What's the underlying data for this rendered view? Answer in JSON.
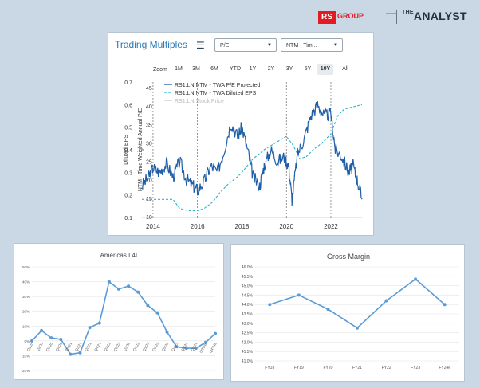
{
  "brand": {
    "rs_logo": "RS",
    "rs_group": "GROUP",
    "analyst_prefix": "THE",
    "analyst_name": "ANALYST"
  },
  "trading": {
    "title": "Trading Multiples",
    "select1": "P/E",
    "select2": "NTM - Tim...",
    "zoom_label": "Zoom",
    "zoom_buttons": [
      "1M",
      "3M",
      "6M",
      "YTD",
      "1Y",
      "2Y",
      "3Y",
      "5Y",
      "10Y",
      "All"
    ],
    "active_zoom": "10Y"
  },
  "chart_data": [
    {
      "type": "line",
      "title": "",
      "ylabel_left": "Diluted EPS",
      "ylabel_right": "NTM - Time Weighted Annual P/E",
      "x_ticks": [
        "2014",
        "2016",
        "2018",
        "2020",
        "2022"
      ],
      "y_left_ticks": [
        "0.1",
        "0.2",
        "0.3",
        "0.4",
        "0.5",
        "0.6",
        "0.7"
      ],
      "y_right_ticks": [
        "10",
        "15",
        "20",
        "25",
        "30",
        "35",
        "40",
        "45"
      ],
      "ylim_left": [
        0.1,
        0.7
      ],
      "xlim": [
        2013.5,
        2023.4
      ],
      "legend": [
        "RS1:LN NTM - TWA P/E Projected",
        "RS1:LN NTM - TWA Diluted EPS",
        "RS1:LN Stock Price"
      ],
      "series": [
        {
          "name": "RS1:LN NTM - TWA P/E Projected",
          "style": "solid",
          "color": "#1f5fa8",
          "x": [
            2013.5,
            2013.8,
            2014.0,
            2014.3,
            2014.6,
            2014.9,
            2015.2,
            2015.5,
            2015.8,
            2016.0,
            2016.3,
            2016.6,
            2016.9,
            2017.2,
            2017.5,
            2017.8,
            2018.0,
            2018.3,
            2018.5,
            2018.8,
            2019.0,
            2019.3,
            2019.6,
            2019.9,
            2020.1,
            2020.25,
            2020.5,
            2020.8,
            2021.1,
            2021.4,
            2021.7,
            2022.0,
            2022.2,
            2022.5,
            2022.8,
            2023.0,
            2023.2,
            2023.4
          ],
          "y": [
            0.24,
            0.28,
            0.32,
            0.3,
            0.34,
            0.28,
            0.35,
            0.27,
            0.24,
            0.22,
            0.26,
            0.33,
            0.3,
            0.4,
            0.52,
            0.46,
            0.5,
            0.38,
            0.28,
            0.24,
            0.33,
            0.4,
            0.35,
            0.37,
            0.33,
            0.18,
            0.38,
            0.45,
            0.55,
            0.6,
            0.55,
            0.56,
            0.4,
            0.37,
            0.3,
            0.33,
            0.26,
            0.18
          ]
        },
        {
          "name": "RS1:LN NTM - TWA Diluted EPS",
          "style": "dashed",
          "color": "#2bb5c7",
          "x": [
            2013.5,
            2014.0,
            2014.5,
            2014.9,
            2015.2,
            2015.6,
            2016.0,
            2016.3,
            2016.7,
            2017.0,
            2017.4,
            2017.8,
            2018.0,
            2018.5,
            2019.0,
            2019.5,
            2020.0,
            2020.3,
            2020.6,
            2020.9,
            2021.2,
            2021.6,
            2022.0,
            2022.3,
            2022.6,
            2023.0,
            2023.4
          ],
          "y": [
            0.18,
            0.18,
            0.18,
            0.18,
            0.14,
            0.13,
            0.13,
            0.14,
            0.17,
            0.21,
            0.25,
            0.28,
            0.3,
            0.36,
            0.4,
            0.43,
            0.46,
            0.42,
            0.36,
            0.37,
            0.4,
            0.43,
            0.47,
            0.55,
            0.58,
            0.59,
            0.6
          ]
        },
        {
          "name": "RS1:LN Stock Price",
          "style": "hidden",
          "color": "#c8cdd2",
          "x": [],
          "y": []
        }
      ]
    },
    {
      "type": "line",
      "title": "Americas L4L",
      "categories": [
        "Q1'20",
        "Q2'20",
        "Q3'20",
        "Q4'20",
        "Q1'21",
        "Q2'21",
        "Q3'21",
        "Q4'21",
        "Q1'22",
        "Q2'22",
        "Q3'22",
        "Q4'22",
        "Q1'23",
        "Q2'23",
        "Q3'23",
        "Q4'23",
        "Q1'24",
        "Q2'24",
        "Q3'24e",
        "Q4'24e"
      ],
      "values": [
        0,
        7,
        2,
        1,
        -9,
        -8,
        9,
        12,
        40,
        35,
        37,
        33,
        24,
        19,
        6,
        -4,
        -5,
        -5,
        -1,
        5
      ],
      "y_ticks": [
        "-20%",
        "-10%",
        "0%",
        "10%",
        "20%",
        "30%",
        "40%",
        "50%"
      ],
      "ylim": [
        -20,
        50
      ],
      "color": "#5b9bd5"
    },
    {
      "type": "line",
      "title": "Gross Margin",
      "categories": [
        "FY18",
        "FY19",
        "FY20",
        "FY21",
        "FY22",
        "FY23",
        "FY24e"
      ],
      "values": [
        44.0,
        44.5,
        43.75,
        42.75,
        44.2,
        45.35,
        44.0
      ],
      "y_ticks": [
        "41.0%",
        "41.5%",
        "42.0%",
        "42.5%",
        "43.0%",
        "43.5%",
        "44.0%",
        "44.5%",
        "45.0%",
        "45.5%",
        "46.0%"
      ],
      "ylim": [
        41.0,
        46.0
      ],
      "color": "#5b9bd5"
    }
  ]
}
